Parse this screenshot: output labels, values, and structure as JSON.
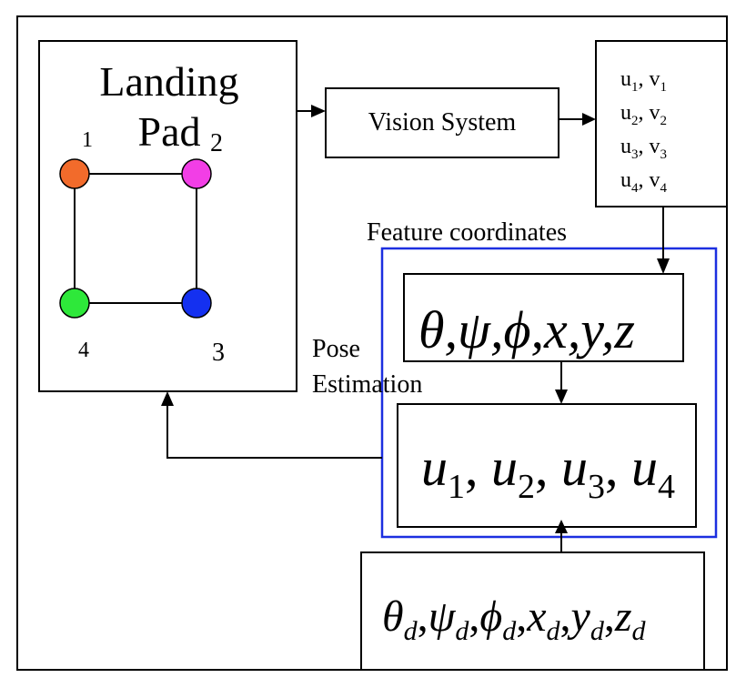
{
  "landing_pad": {
    "title_line1": "Landing",
    "title_line2": "Pad",
    "markers": [
      {
        "label": "1",
        "color": "#f26b2b"
      },
      {
        "label": "2",
        "color": "#f23ee6"
      },
      {
        "label": "3",
        "color": "#1430f0"
      },
      {
        "label": "4",
        "color": "#2ee83a"
      }
    ]
  },
  "vision_system": {
    "label": "Vision System"
  },
  "feature_list": {
    "items": [
      {
        "u": "u",
        "u_sub": "1",
        "v": "v",
        "v_sub": "1"
      },
      {
        "u": "u",
        "u_sub": "2",
        "v": "v",
        "v_sub": "2"
      },
      {
        "u": "u",
        "u_sub": "3",
        "v": "v",
        "v_sub": "3"
      },
      {
        "u": "u",
        "u_sub": "4",
        "v": "v",
        "v_sub": "4"
      }
    ]
  },
  "feature_coordinates_label": "Feature coordinates",
  "pose_estimation_label": {
    "line1": "Pose",
    "line2": "Estimation"
  },
  "pose_box": {
    "text": "θ,ψ,ϕ,x,y,z"
  },
  "u_box": {
    "terms": [
      {
        "var": "u",
        "sub": "1"
      },
      {
        "var": "u",
        "sub": "2"
      },
      {
        "var": "u",
        "sub": "3"
      },
      {
        "var": "u",
        "sub": "4"
      }
    ]
  },
  "desired_box": {
    "terms": [
      {
        "var": "θ",
        "sub": "d"
      },
      {
        "var": "ψ",
        "sub": "d"
      },
      {
        "var": "ϕ",
        "sub": "d"
      },
      {
        "var": "x",
        "sub": "d"
      },
      {
        "var": "y",
        "sub": "d"
      },
      {
        "var": "z",
        "sub": "d"
      }
    ]
  },
  "colors": {
    "highlight_frame": "#1c2fe0",
    "line": "#000000"
  }
}
